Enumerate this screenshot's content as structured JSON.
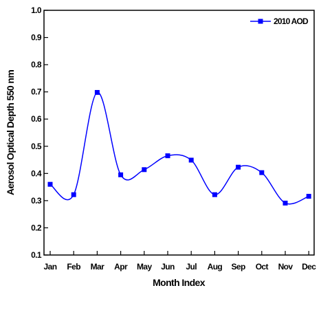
{
  "chart_data": {
    "type": "line",
    "categories": [
      "Jan",
      "Feb",
      "Mar",
      "Apr",
      "May",
      "Jun",
      "Jul",
      "Aug",
      "Sep",
      "Oct",
      "Nov",
      "Dec"
    ],
    "series": [
      {
        "name": "2010 AOD",
        "values": [
          0.36,
          0.322,
          0.698,
          0.395,
          0.414,
          0.465,
          0.449,
          0.322,
          0.423,
          0.403,
          0.291,
          0.316
        ]
      }
    ],
    "xlabel": "Month Index",
    "ylabel": "Aerosol Optical Depth 550 nm",
    "ylim": [
      0.1,
      1.0
    ],
    "yticks": [
      0.1,
      0.2,
      0.3,
      0.4,
      0.5,
      0.6,
      0.7,
      0.8,
      0.9,
      1.0
    ],
    "ytick_labels": [
      "0.1",
      "0.2",
      "0.3",
      "0.4",
      "0.5",
      "0.6",
      "0.7",
      "0.8",
      "0.9",
      "1.0"
    ],
    "grid": false,
    "legend_position": "top-right",
    "line_style": "smooth",
    "marker": "square",
    "color": "#0000ff"
  }
}
